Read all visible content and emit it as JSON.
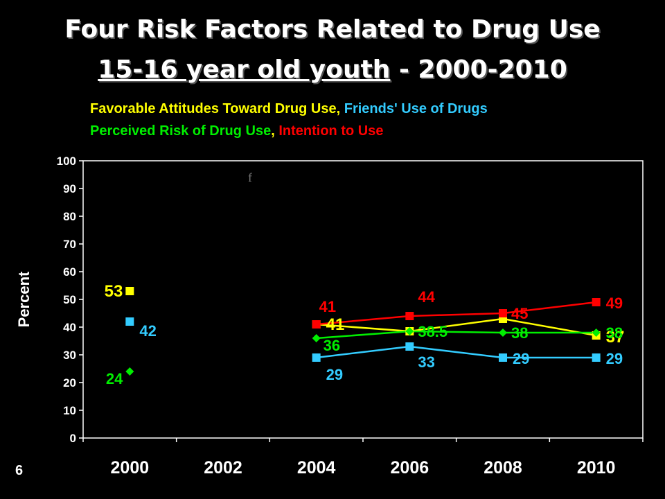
{
  "slide": {
    "title_line1": "Four Risk Factors Related to Drug Use",
    "title_line2_underlined": "15-16 year old youth",
    "title_line2_rest": " - 2000-2010",
    "number": "6"
  },
  "legend": {
    "line1": [
      {
        "text": "Favorable Attitudes Toward Drug Use",
        "color": "#FFFF00"
      },
      {
        "text": ", ",
        "color": "#FFFF00"
      },
      {
        "text": "Friends' Use of Drugs",
        "color": "#33CCFF"
      }
    ],
    "line2": [
      {
        "text": "Perceived Risk of Drug Use",
        "color": "#00EE00"
      },
      {
        "text": ", ",
        "color": "#FFFF00"
      },
      {
        "text": "Intention to Use",
        "color": "#FF0000"
      }
    ]
  },
  "chart_data": {
    "type": "line",
    "ylabel": "Percent",
    "xlabel": "",
    "ylim": [
      0,
      100
    ],
    "yticks": [
      0,
      10,
      20,
      30,
      40,
      50,
      60,
      70,
      80,
      90,
      100
    ],
    "categories": [
      "2000",
      "2002",
      "2004",
      "2006",
      "2008",
      "2010"
    ],
    "stray_mark": "f",
    "grid": false,
    "series": [
      {
        "key": "favorable",
        "color": "#FFFF00",
        "marker": "square",
        "points": [
          {
            "x": 2000,
            "y": 53,
            "label": "53"
          },
          {
            "x": 2004,
            "y": 41,
            "label": "41"
          },
          {
            "x": 2006,
            "y": 38.5,
            "label": ""
          },
          {
            "x": 2008,
            "y": 43,
            "label": ""
          },
          {
            "x": 2010,
            "y": 37,
            "label": "37"
          }
        ],
        "segments": [
          [
            1,
            2
          ],
          [
            2,
            3
          ],
          [
            3,
            4
          ]
        ]
      },
      {
        "key": "friends",
        "color": "#33CCFF",
        "marker": "square",
        "points": [
          {
            "x": 2000,
            "y": 42,
            "label": "42"
          },
          {
            "x": 2004,
            "y": 29,
            "label": "29"
          },
          {
            "x": 2006,
            "y": 33,
            "label": "33"
          },
          {
            "x": 2008,
            "y": 29,
            "label": "29"
          },
          {
            "x": 2010,
            "y": 29,
            "label": "29"
          }
        ],
        "segments": [
          [
            1,
            2
          ],
          [
            2,
            3
          ],
          [
            3,
            4
          ]
        ]
      },
      {
        "key": "risk",
        "color": "#00EE00",
        "marker": "diamond",
        "points": [
          {
            "x": 2000,
            "y": 24,
            "label": "24"
          },
          {
            "x": 2004,
            "y": 36,
            "label": "36"
          },
          {
            "x": 2006,
            "y": 38.5,
            "label": "38.5"
          },
          {
            "x": 2008,
            "y": 38,
            "label": "38"
          },
          {
            "x": 2010,
            "y": 38,
            "label": "38"
          }
        ],
        "segments": [
          [
            1,
            2
          ],
          [
            2,
            3
          ],
          [
            3,
            4
          ]
        ]
      },
      {
        "key": "intention",
        "color": "#FF0000",
        "marker": "square",
        "points": [
          {
            "x": 2004,
            "y": 41,
            "label": "41"
          },
          {
            "x": 2006,
            "y": 44,
            "label": "44"
          },
          {
            "x": 2008,
            "y": 45,
            "label": "45"
          },
          {
            "x": 2010,
            "y": 49,
            "label": "49"
          }
        ],
        "segments": [
          [
            0,
            1
          ],
          [
            1,
            2
          ],
          [
            2,
            3
          ]
        ]
      }
    ]
  }
}
